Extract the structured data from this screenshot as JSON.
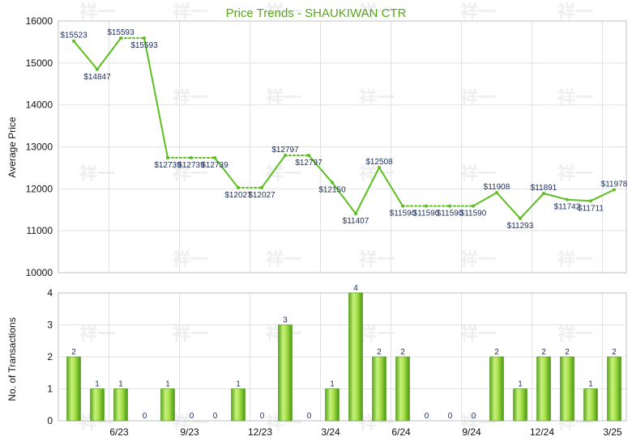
{
  "chart_data": [
    {
      "type": "line",
      "title": "Price Trends - SHAUKIWAN CTR",
      "ylabel": "Average Price",
      "ylim": [
        10000,
        16000
      ],
      "yticks": [
        10000,
        11000,
        12000,
        13000,
        14000,
        15000,
        16000
      ],
      "series": [
        {
          "values": [
            15523,
            14847,
            15593,
            15593,
            12739,
            12739,
            12739,
            12027,
            12027,
            12797,
            12797,
            12150,
            11407,
            12508,
            11590,
            11590,
            11590,
            11590,
            11908,
            11293,
            11891,
            11742,
            11711,
            11978
          ],
          "labels": [
            "$15523",
            "$14847",
            "$15593",
            "$15593",
            "$12739",
            "$12739",
            "$12739",
            "$12027",
            "$12027",
            "$12797",
            "$12797",
            "$12150",
            "$11407",
            "$12508",
            "$11590",
            "$11590",
            "$11590",
            "$11590",
            "$11908",
            "$11293",
            "$11891",
            "$11742",
            "$11711",
            "$11978"
          ],
          "dotted_segments": [
            2,
            4,
            5,
            7,
            9,
            14,
            15,
            16
          ],
          "color": "#5cbf1e"
        }
      ],
      "grid": true
    },
    {
      "type": "bar",
      "ylabel": "No. of Transactions",
      "ylim": [
        0,
        4
      ],
      "yticks": [
        0,
        1,
        2,
        3,
        4
      ],
      "values": [
        2,
        1,
        1,
        0,
        1,
        0,
        0,
        1,
        0,
        3,
        0,
        1,
        4,
        2,
        2,
        0,
        0,
        0,
        2,
        1,
        2,
        2,
        1,
        2
      ],
      "color": "#7ed321"
    }
  ],
  "x_tick_labels": [
    "6/23",
    "9/23",
    "12/23",
    "3/24",
    "6/24",
    "9/24",
    "12/24",
    "3/25"
  ],
  "x_tick_index": [
    2,
    5,
    8,
    11,
    14,
    17,
    20,
    23
  ],
  "watermark": "祥一",
  "colors": {
    "line": "#5cbf1e",
    "title": "#5aa51e",
    "bar_light": "#c4ef7a",
    "bar_dark": "#4d9a12"
  }
}
